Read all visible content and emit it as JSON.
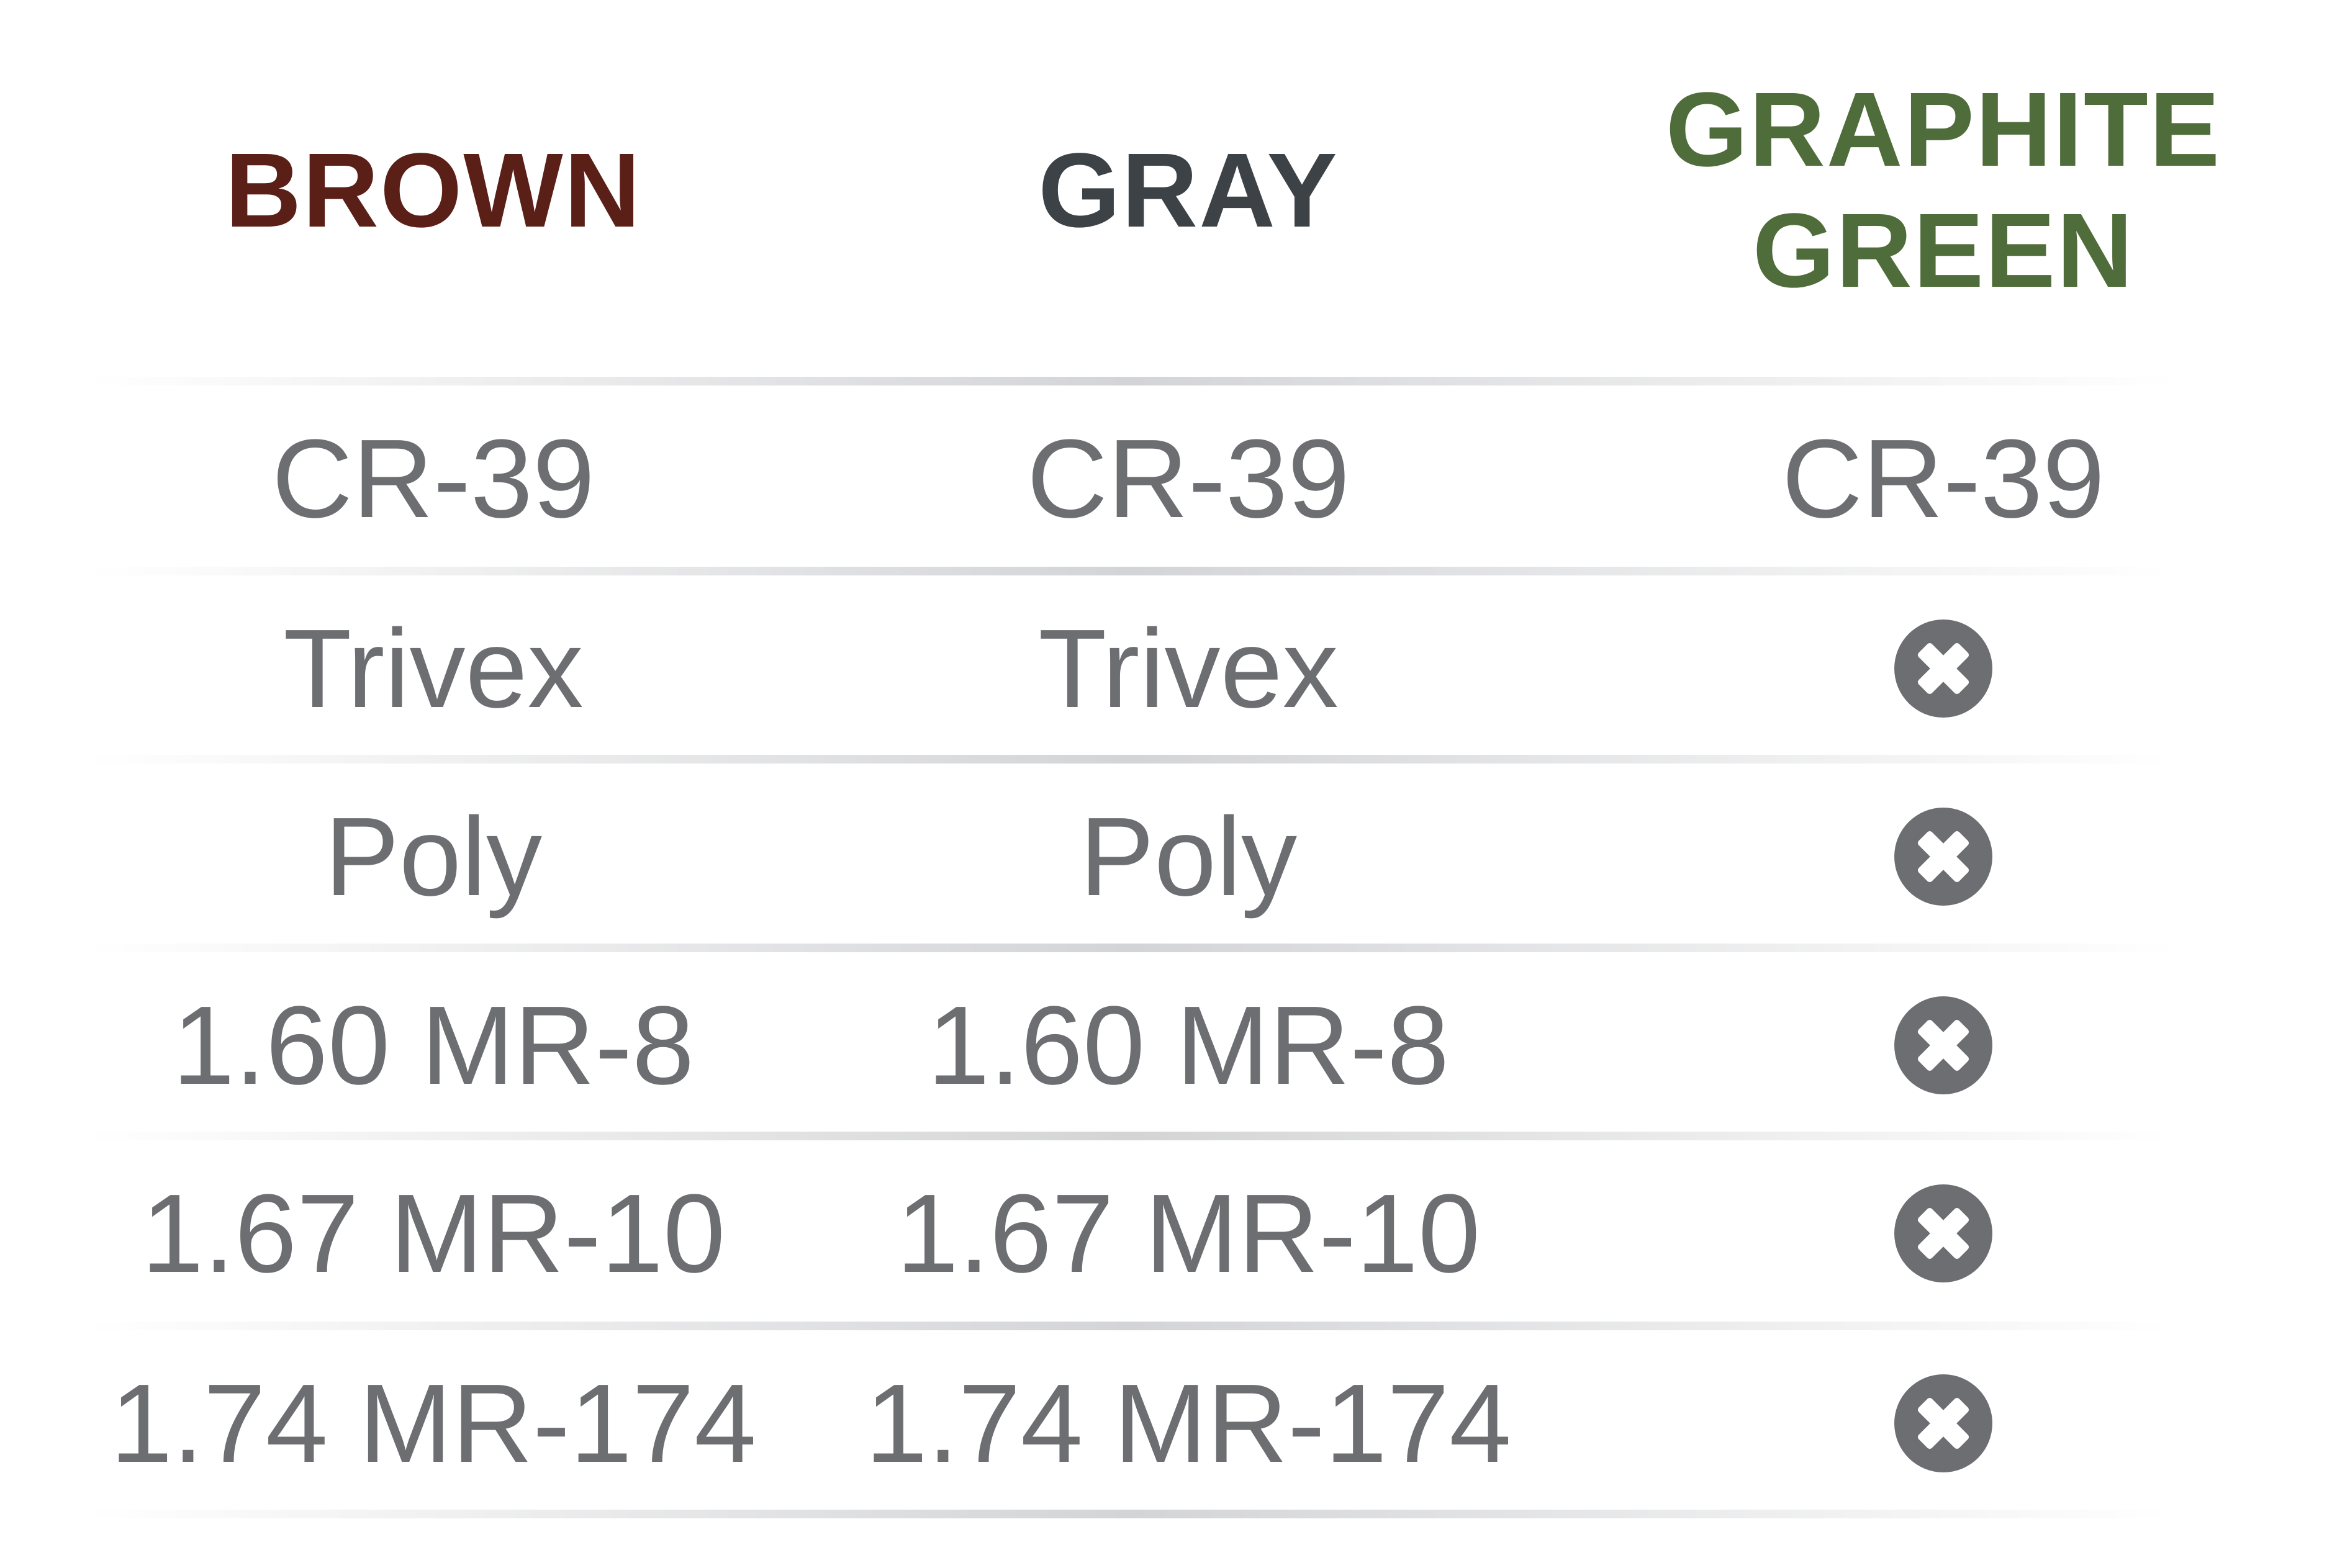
{
  "colors": {
    "brown": "#5a1f17",
    "gray": "#3d4247",
    "graphite_green": "#4f6d3a",
    "body_text": "#6d6e71",
    "icon": "#6d6e71"
  },
  "header": [
    "BROWN",
    "GRAY",
    "GRAPHITE GREEN"
  ],
  "rows": [
    [
      "CR-39",
      "CR-39",
      "CR-39"
    ],
    [
      "Trivex",
      "Trivex",
      "unavailable"
    ],
    [
      "Poly",
      "Poly",
      "unavailable"
    ],
    [
      "1.60 MR-8",
      "1.60 MR-8",
      "unavailable"
    ],
    [
      "1.67 MR-10",
      "1.67 MR-10",
      "unavailable"
    ],
    [
      "1.74 MR-174",
      "1.74 MR-174",
      "unavailable"
    ]
  ],
  "unavailable_icon": "close-circle-icon"
}
